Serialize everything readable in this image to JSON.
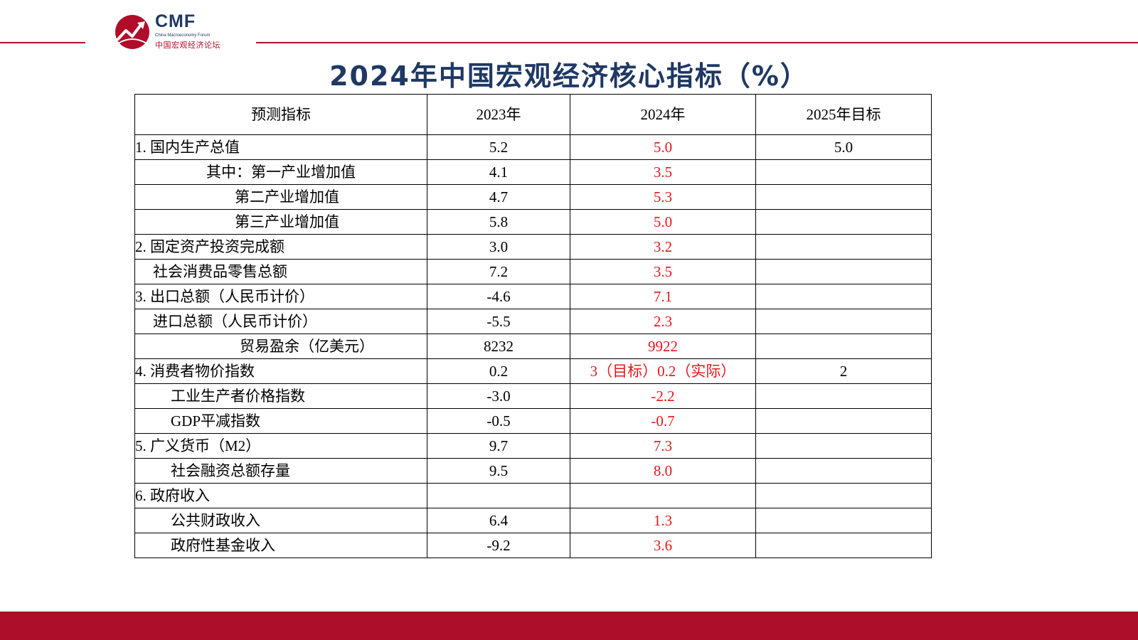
{
  "logo": {
    "brand": "CMF",
    "subtitle_en": "China Macroeconomy Forum",
    "subtitle_cn": "中国宏观经济论坛"
  },
  "title": "2024年中国宏观经济核心指标（%）",
  "colors": {
    "brand_red": "#b00d2a",
    "title_navy": "#1f3864",
    "highlight_red": "#e8161b"
  },
  "table": {
    "headers": [
      "预测指标",
      "2023年",
      "2024年",
      "2025年目标"
    ],
    "rows": [
      [
        "1. 国内生产总值",
        "5.2",
        "5.0",
        "5.0"
      ],
      [
        "其中：第一产业增加值",
        "4.1",
        "3.5",
        ""
      ],
      [
        "第二产业增加值",
        "4.7",
        "5.3",
        ""
      ],
      [
        "第三产业增加值",
        "5.8",
        "5.0",
        ""
      ],
      [
        "2. 固定资产投资完成额",
        "3.0",
        "3.2",
        ""
      ],
      [
        "社会消费品零售总额",
        "7.2",
        "3.5",
        ""
      ],
      [
        "3. 出口总额（人民币计价）",
        "-4.6",
        "7.1",
        ""
      ],
      [
        "进口总额（人民币计价）",
        "-5.5",
        "2.3",
        ""
      ],
      [
        "贸易盈余（亿美元）",
        "8232",
        "9922",
        ""
      ],
      [
        "4. 消费者物价指数",
        "0.2",
        "3（目标）0.2（实际）",
        "2"
      ],
      [
        "工业生产者价格指数",
        "-3.0",
        "-2.2",
        ""
      ],
      [
        "GDP平减指数",
        "-0.5",
        "-0.7",
        ""
      ],
      [
        "5. 广义货币（M2）",
        "9.7",
        "7.3",
        ""
      ],
      [
        "社会融资总额存量",
        "9.5",
        "8.0",
        ""
      ],
      [
        "6. 政府收入",
        "",
        "",
        ""
      ],
      [
        "公共财政收入",
        "6.4",
        "1.3",
        ""
      ],
      [
        "政府性基金收入",
        "-9.2",
        "3.6",
        ""
      ]
    ]
  }
}
